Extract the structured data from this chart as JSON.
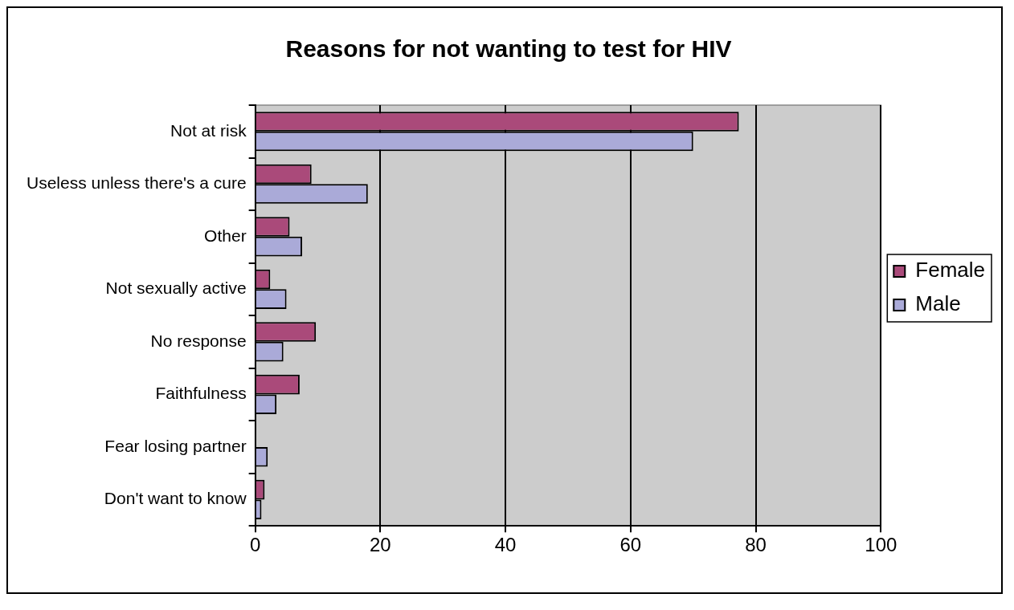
{
  "chart_data": {
    "type": "bar",
    "orientation": "horizontal",
    "title": "Reasons for not wanting to test for HIV",
    "categories": [
      "Not at risk",
      "Useless unless there's a cure",
      "Other",
      "Not sexually active",
      "No response",
      "Faithfulness",
      "Fear losing partner",
      "Don't want to know"
    ],
    "series": [
      {
        "name": "Female",
        "color": "#aa4a7a",
        "values": [
          77.3,
          9,
          5.5,
          2.4,
          9.7,
          7.1,
          0,
          1.5
        ]
      },
      {
        "name": "Male",
        "color": "#aaaad8",
        "values": [
          70,
          18,
          7.5,
          5,
          4.5,
          3.4,
          2,
          1
        ]
      }
    ],
    "xlim": [
      0,
      100
    ],
    "xticks": [
      0,
      20,
      40,
      60,
      80,
      100
    ],
    "grid": "x",
    "legend": "right"
  }
}
